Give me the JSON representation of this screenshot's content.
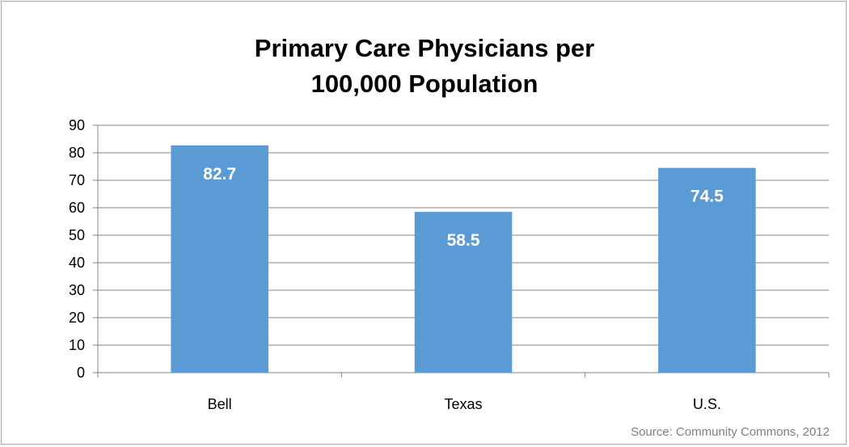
{
  "chart_data": {
    "type": "bar",
    "title_lines": [
      "Primary Care Physicians per",
      "100,000 Population"
    ],
    "categories": [
      "Bell",
      "Texas",
      "U.S."
    ],
    "values": [
      82.7,
      58.5,
      74.5
    ],
    "data_labels": [
      "82.7",
      "58.5",
      "74.5"
    ],
    "ylim": [
      0,
      90
    ],
    "yticks": [
      0,
      10,
      20,
      30,
      40,
      50,
      60,
      70,
      80,
      90
    ],
    "grid": true,
    "legend": "none",
    "source": "Source: Community Commons, 2012",
    "colors": {
      "bar": "#5b9bd5",
      "grid": "#868686",
      "axis": "#868686",
      "data_label": "#ffffff"
    }
  }
}
